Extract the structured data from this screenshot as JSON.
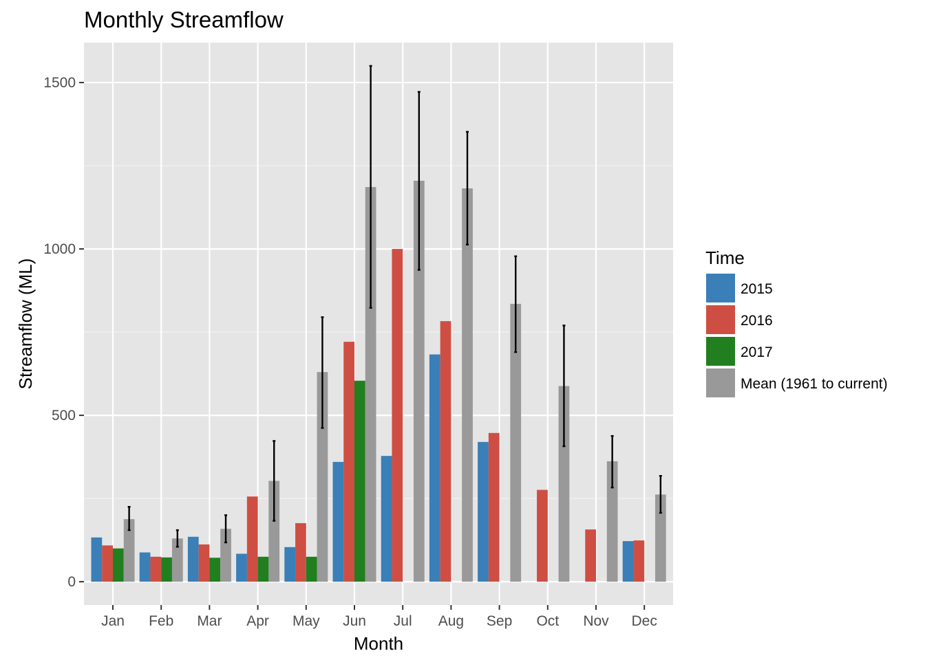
{
  "chart_data": {
    "type": "bar",
    "title": "Monthly Streamflow",
    "xlabel": "Month",
    "ylabel": "Streamflow (ML)",
    "ylim": [
      -70,
      1620
    ],
    "yticks": [
      0,
      500,
      1000,
      1500
    ],
    "grid": true,
    "legend_position": "right",
    "legend_title": "Time",
    "categories": [
      "Jan",
      "Feb",
      "Mar",
      "Apr",
      "May",
      "Jun",
      "Jul",
      "Aug",
      "Sep",
      "Oct",
      "Nov",
      "Dec"
    ],
    "series": [
      {
        "name": "2015",
        "color": "#3a7fb7",
        "values": [
          133,
          88,
          135,
          84,
          104,
          360,
          378,
          683,
          420,
          null,
          null,
          122
        ]
      },
      {
        "name": "2016",
        "color": "#cf4e43",
        "values": [
          109,
          75,
          112,
          256,
          176,
          721,
          1000,
          783,
          447,
          276,
          157,
          124
        ]
      },
      {
        "name": "2017",
        "color": "#217f1f",
        "values": [
          100,
          73,
          72,
          75,
          75,
          604,
          null,
          null,
          null,
          null,
          null,
          null
        ]
      },
      {
        "name": "Mean (1961 to current)",
        "color": "#999999",
        "values": [
          188,
          130,
          159,
          303,
          630,
          1186,
          1205,
          1182,
          835,
          588,
          362,
          262
        ],
        "error_low": [
          155,
          105,
          118,
          183,
          462,
          823,
          937,
          1013,
          690,
          407,
          283,
          207
        ],
        "error_high": [
          225,
          155,
          200,
          423,
          795,
          1550,
          1472,
          1352,
          978,
          770,
          438,
          318
        ]
      }
    ]
  }
}
